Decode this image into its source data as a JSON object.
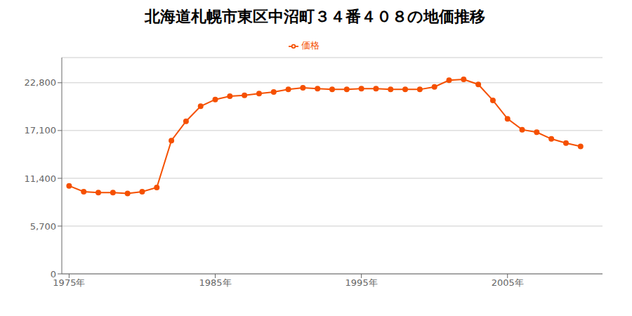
{
  "chart_data": {
    "type": "line",
    "title": "北海道札幌市東区中沼町３４番４０８の地価推移",
    "x": [
      1975,
      1976,
      1977,
      1978,
      1979,
      1980,
      1981,
      1982,
      1983,
      1984,
      1985,
      1986,
      1987,
      1988,
      1989,
      1990,
      1991,
      1992,
      1993,
      1994,
      1995,
      1996,
      1997,
      1998,
      1999,
      2000,
      2001,
      2002,
      2003,
      2004,
      2005,
      2006,
      2007,
      2008,
      2009,
      2010
    ],
    "series": [
      {
        "name": "価格",
        "color": "#f55000",
        "marker": "circle",
        "values": [
          10500,
          9800,
          9700,
          9700,
          9600,
          9800,
          10300,
          15900,
          18200,
          20000,
          20800,
          21200,
          21300,
          21500,
          21700,
          22000,
          22200,
          22100,
          22000,
          22000,
          22100,
          22100,
          22000,
          22000,
          22000,
          22300,
          23100,
          23200,
          22600,
          20700,
          18500,
          17200,
          16900,
          16100,
          15600,
          15200
        ]
      }
    ],
    "xlim": [
      1974.5,
      2011.5
    ],
    "xticks": [
      {
        "value": 1975,
        "label": "1975年"
      },
      {
        "value": 1985,
        "label": "1985年"
      },
      {
        "value": 1995,
        "label": "1995年"
      },
      {
        "value": 2005,
        "label": "2005年"
      }
    ],
    "ylim": [
      0,
      25800
    ],
    "yticks": [
      0,
      {
        "value": 5700,
        "label": "5,700"
      },
      {
        "value": 11400,
        "label": "11,400"
      },
      {
        "value": 17100,
        "label": "17,100"
      },
      {
        "value": 22800,
        "label": "22,800"
      }
    ],
    "grid": true,
    "legend": "top"
  }
}
